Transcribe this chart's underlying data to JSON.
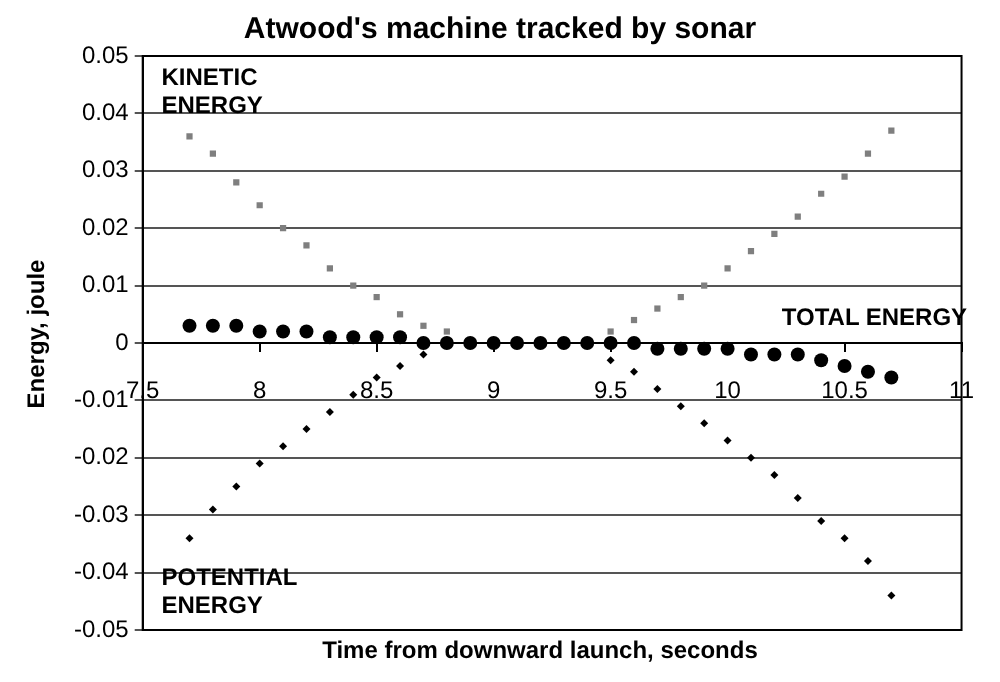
{
  "chart_data": {
    "type": "scatter",
    "title": "Atwood's machine tracked by sonar",
    "xlabel": "Time from downward launch, seconds",
    "ylabel": "Energy, joule",
    "x": [
      7.7,
      7.8,
      7.9,
      8.0,
      8.1,
      8.2,
      8.3,
      8.4,
      8.5,
      8.6,
      8.7,
      8.8,
      8.9,
      9.0,
      9.1,
      9.2,
      9.3,
      9.4,
      9.5,
      9.6,
      9.7,
      9.8,
      9.9,
      10.0,
      10.1,
      10.2,
      10.3,
      10.4,
      10.5,
      10.6,
      10.7
    ],
    "series": [
      {
        "name": "KINETIC\nENERGY",
        "color": "#7f7f7f",
        "marker": "square",
        "values": [
          0.036,
          0.033,
          0.028,
          0.024,
          0.02,
          0.017,
          0.013,
          0.01,
          0.008,
          0.005,
          0.003,
          0.002,
          null,
          null,
          null,
          null,
          null,
          null,
          0.002,
          0.004,
          0.006,
          0.008,
          0.01,
          0.013,
          0.016,
          0.019,
          0.022,
          0.026,
          0.029,
          0.033,
          0.037
        ]
      },
      {
        "name": "POTENTIAL\nENERGY",
        "color": "#000000",
        "marker": "diamond",
        "values": [
          -0.034,
          -0.029,
          -0.025,
          -0.021,
          -0.018,
          -0.015,
          -0.012,
          -0.009,
          -0.006,
          -0.004,
          -0.002,
          null,
          null,
          null,
          null,
          null,
          null,
          null,
          -0.003,
          -0.005,
          -0.008,
          -0.011,
          -0.014,
          -0.017,
          -0.02,
          -0.023,
          -0.027,
          -0.031,
          -0.034,
          -0.038,
          -0.044
        ]
      },
      {
        "name": "TOTAL ENERGY",
        "color": "#000000",
        "marker": "circle",
        "values": [
          0.003,
          0.003,
          0.003,
          0.002,
          0.002,
          0.002,
          0.001,
          0.001,
          0.001,
          0.001,
          0.0,
          0.0,
          0.0,
          0.0,
          0.0,
          0.0,
          0.0,
          0.0,
          0.0,
          0.0,
          -0.001,
          -0.001,
          -0.001,
          -0.001,
          -0.002,
          -0.002,
          -0.002,
          -0.003,
          -0.004,
          -0.005,
          -0.006
        ]
      }
    ],
    "xlim": [
      7.5,
      11
    ],
    "xticks": [
      7.5,
      8,
      8.5,
      9,
      9.5,
      10,
      10.5,
      11
    ],
    "ylim": [
      -0.05,
      0.05
    ],
    "yticks": [
      -0.05,
      -0.04,
      -0.03,
      -0.02,
      -0.01,
      0,
      0.01,
      0.02,
      0.03,
      0.04,
      0.05
    ],
    "grid": "y",
    "legend": false
  }
}
